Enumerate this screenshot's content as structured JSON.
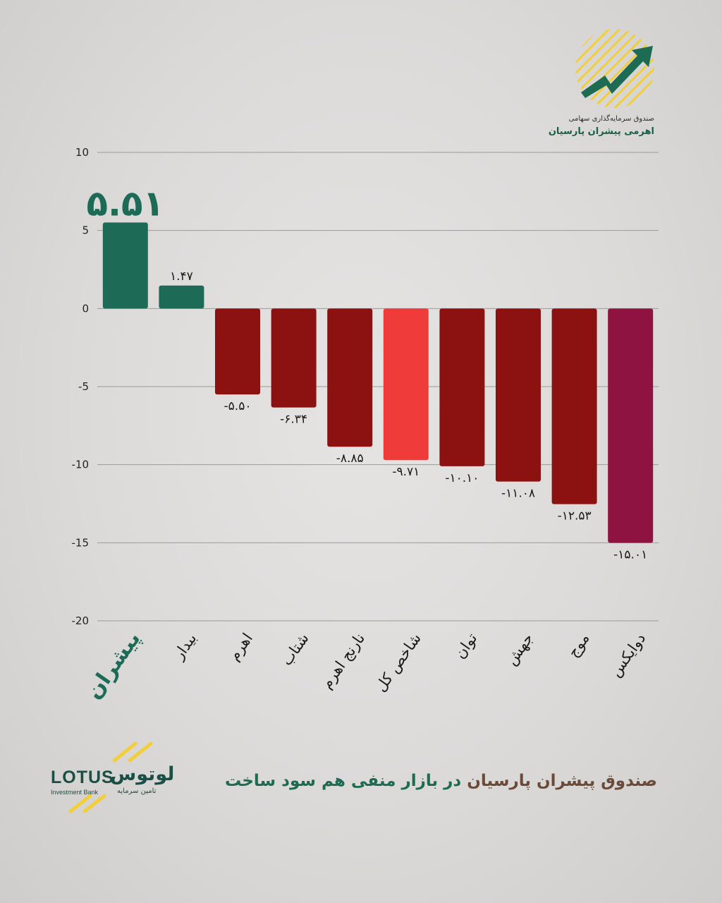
{
  "brand": {
    "fund_caption_line1": "صندوق سرمایه‌گذاری سهامی",
    "fund_caption_line2": "اهرمی پیشران پارسیان",
    "lotus_latin": "LOTUS",
    "lotus_persian": "لوتوس",
    "lotus_sub_en": "Investment Bank",
    "lotus_sub_fa": "تامین سرمایه",
    "accent_yellow": "#f2cf3a",
    "accent_green": "#1d6b52"
  },
  "footer": {
    "title_part1": "صندوق پیشران پارسیان",
    "title_part2": "در بازار منفی هم سود ساخت"
  },
  "chart_data": {
    "type": "bar",
    "categories": [
      "پیشران",
      "بیدار",
      "اهرم",
      "شتاب",
      "نارنج اهرم",
      "شاخص کل",
      "توان",
      "جهش",
      "موج",
      "دوایکس"
    ],
    "values": [
      5.51,
      1.47,
      -5.5,
      -6.34,
      -8.85,
      -9.71,
      -10.1,
      -11.08,
      -12.53,
      -15.01
    ],
    "value_labels": [
      "۵.۵۱",
      "۱.۴۷",
      "-۵.۵۰",
      "-۶.۳۴",
      "-۸.۸۵",
      "-۹.۷۱",
      "-۱۰.۱۰",
      "-۱۱.۰۸",
      "-۱۲.۵۳",
      "-۱۵.۰۱"
    ],
    "colors": [
      "#1d6b56",
      "#1d6b56",
      "#8c1212",
      "#8c1212",
      "#8c1212",
      "#f03b3b",
      "#8c1212",
      "#8c1212",
      "#8c1212",
      "#8e1340"
    ],
    "y_ticks": [
      10,
      5,
      0,
      -5,
      -10,
      -15,
      -20
    ],
    "y_tick_labels": [
      "10",
      "5",
      "0",
      "-5",
      "-10",
      "-15",
      "-20"
    ],
    "ylim": [
      -20,
      10
    ],
    "grid": true,
    "highlight_index": 0
  }
}
